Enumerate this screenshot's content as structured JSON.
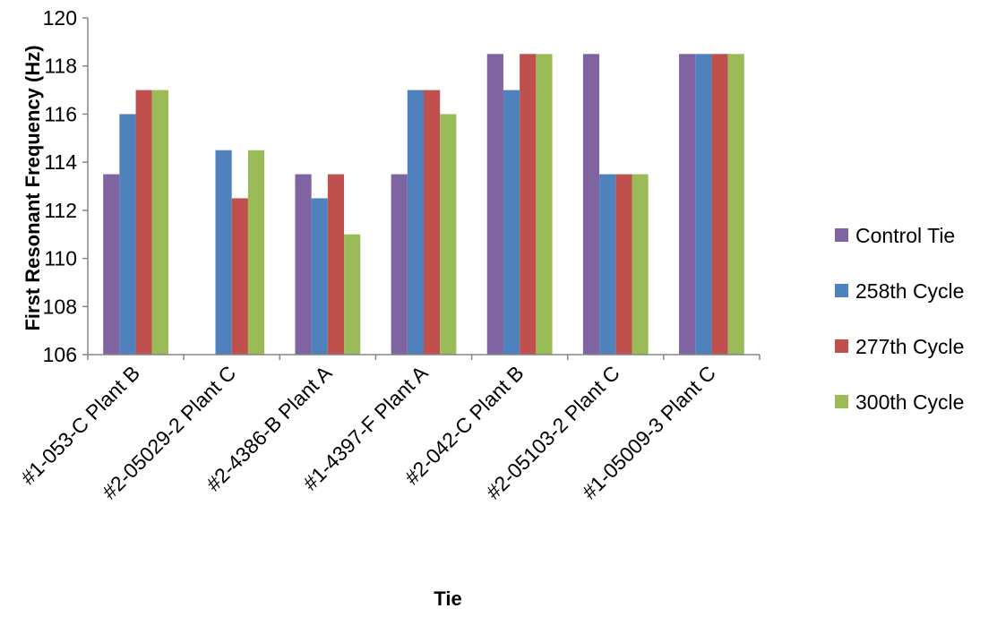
{
  "chart_data": {
    "type": "bar",
    "title": "",
    "xlabel": "Tie",
    "ylabel": "First Resonant Frequency (Hz)",
    "ylim": [
      106,
      120
    ],
    "yticks": [
      "106",
      "108",
      "110",
      "112",
      "114",
      "116",
      "118",
      "120"
    ],
    "grid": false,
    "legend_position": "right",
    "categories": [
      "#1-053-C Plant B",
      "#2-05029-2 Plant C",
      "#2-4386-B Plant A",
      "#1-4397-F Plant A",
      "#2-042-C Plant B",
      "#2-05103-2 Plant C",
      "#1-05009-3 Plant C"
    ],
    "series": [
      {
        "name": "Control Tie",
        "color": "#8064A2",
        "values": [
          113.5,
          null,
          113.5,
          113.5,
          118.5,
          118.5,
          118.5
        ]
      },
      {
        "name": "258th Cycle",
        "color": "#4F81BD",
        "values": [
          116,
          114.5,
          112.5,
          117,
          117,
          113.5,
          118.5
        ]
      },
      {
        "name": "277th Cycle",
        "color": "#C0504D",
        "values": [
          117,
          112.5,
          113.5,
          117,
          118.5,
          113.5,
          118.5
        ]
      },
      {
        "name": "300th Cycle",
        "color": "#9BBB59",
        "values": [
          117,
          114.5,
          111,
          116,
          118.5,
          113.5,
          118.5
        ]
      }
    ]
  }
}
